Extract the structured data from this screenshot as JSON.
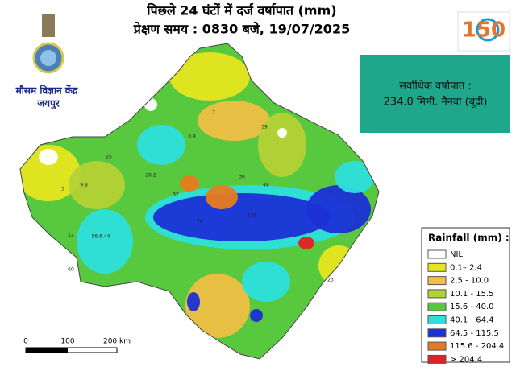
{
  "header": {
    "title_line1": "पिछले 24 घंटों में दर्ज वर्षापात (mm)",
    "title_line2": "प्रेक्षण समय : 0830 बजे, 19/07/2025"
  },
  "logo": {
    "office": "मौसम विज्ञान केंद्र",
    "city": "जयपुर"
  },
  "anniversary_logo": {
    "number": "150"
  },
  "max_rainfall": {
    "label": "सर्वाधिक वर्षापात :",
    "value": "234.0 मिमी. नैनवा (बूंदी)"
  },
  "legend": {
    "title": "Rainfall (mm) :",
    "items": [
      {
        "label": "NIL",
        "color": "#ffffff"
      },
      {
        "label": "0.1– 2.4",
        "color": "#e6e61e"
      },
      {
        "label": "2.5 - 10.0",
        "color": "#efc043"
      },
      {
        "label": "10.1 - 15.5",
        "color": "#b4d236"
      },
      {
        "label": "15.6 - 40.0",
        "color": "#58c83e"
      },
      {
        "label": "40.1 - 64.4",
        "color": "#2ee0dc"
      },
      {
        "label": "64.5 - 115.5",
        "color": "#1b30d6"
      },
      {
        "label": "115.6 - 204.4",
        "color": "#e77b1f"
      },
      {
        "label": "> 204.4",
        "color": "#e02222"
      }
    ]
  },
  "scale_bar": {
    "labels": [
      "0",
      "100",
      "200 km"
    ]
  },
  "map_labels": [
    "3",
    "9.8",
    "25",
    "26.2",
    "32",
    "12",
    "56.6.44",
    "60",
    "0.8",
    "7",
    "39",
    "30",
    "48",
    "76",
    "135",
    "23"
  ]
}
